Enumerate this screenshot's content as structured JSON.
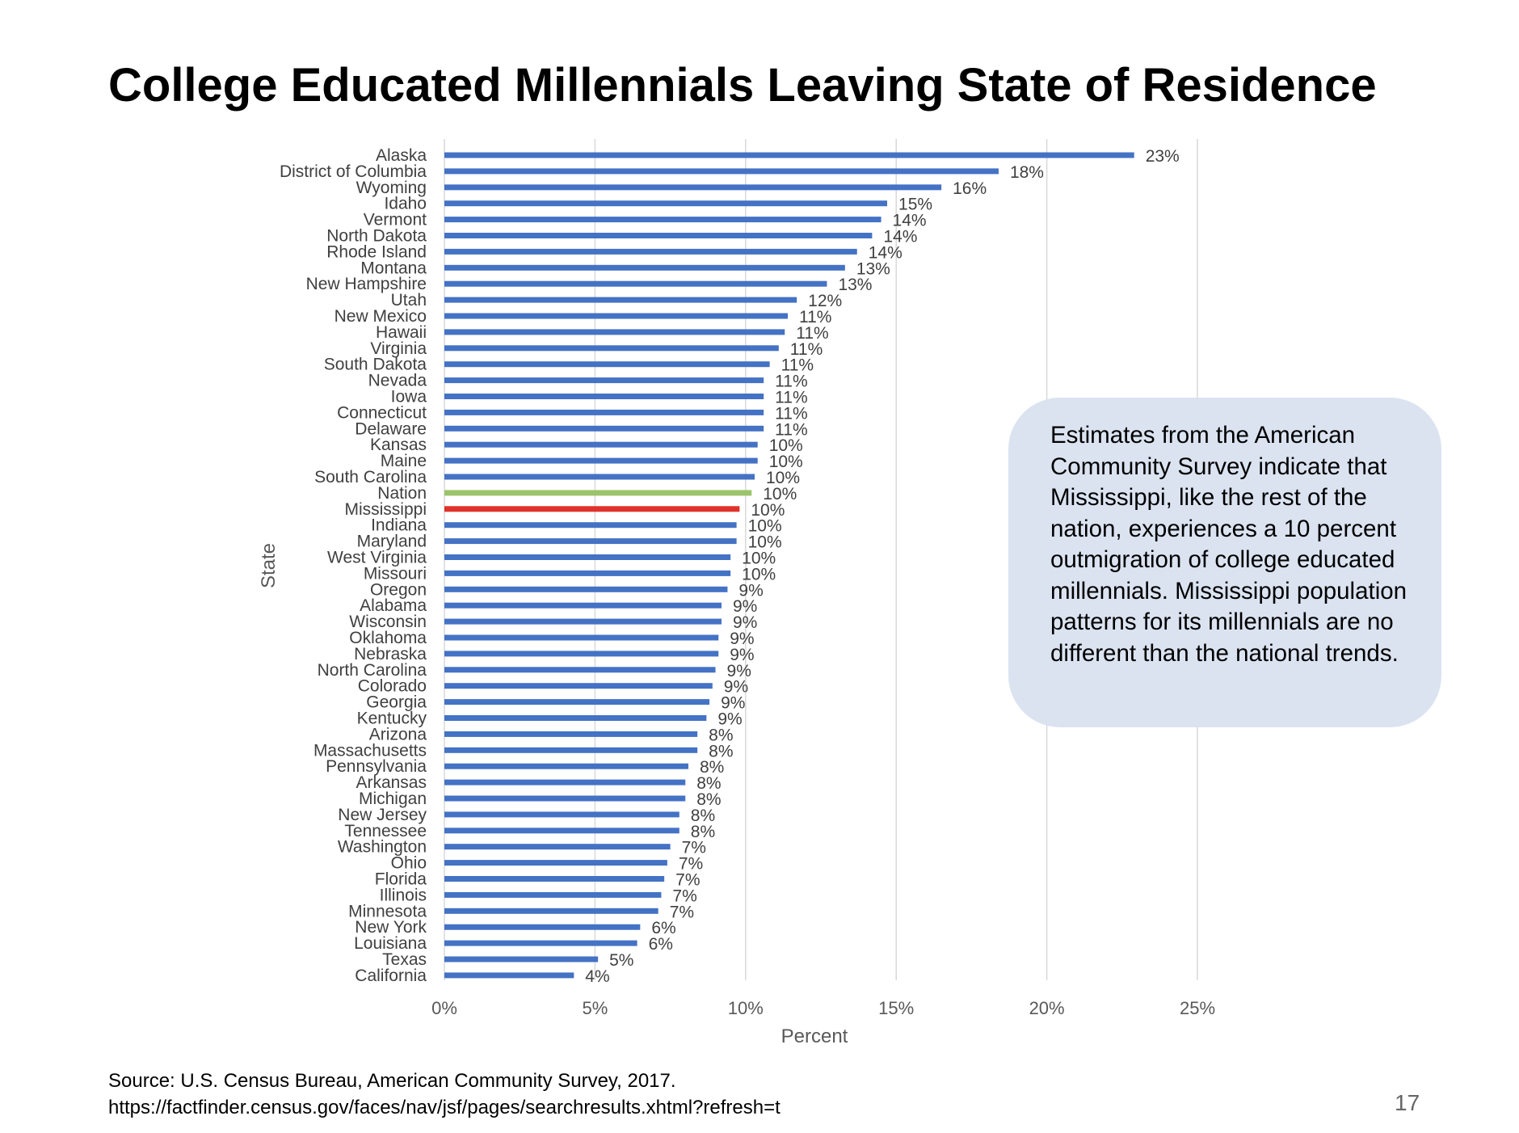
{
  "slide": {
    "title": "College Educated Millennials Leaving State of Residence",
    "callout_text": "Estimates from the American Community Survey indicate that Mississippi, like the rest of the nation, experiences a 10 percent outmigration of college educated millennials. Mississippi population patterns for its millennials are no different than the national trends.",
    "source_line1": "Source: U.S. Census Bureau, American Community Survey, 2017.",
    "source_line2": "https://factfinder.census.gov/faces/nav/jsf/pages/searchresults.xhtml?refresh=t",
    "page_number": "17"
  },
  "colors": {
    "default_bar": "#4472c4",
    "nation_bar": "#9bc46a",
    "mississippi_bar": "#e0312b",
    "grid": "#d9d9d9",
    "callout_bg": "#dbe3f1"
  },
  "chart_data": {
    "type": "bar",
    "orientation": "horizontal",
    "xlabel": "Percent",
    "ylabel": "State",
    "xlim": [
      0,
      25
    ],
    "x_ticks": [
      "0%",
      "5%",
      "10%",
      "15%",
      "20%",
      "25%"
    ],
    "grid": true,
    "categories": [
      "Alaska",
      "District of Columbia",
      "Wyoming",
      "Idaho",
      "Vermont",
      "North Dakota",
      "Rhode Island",
      "Montana",
      "New Hampshire",
      "Utah",
      "New Mexico",
      "Hawaii",
      "Virginia",
      "South Dakota",
      "Nevada",
      "Iowa",
      "Connecticut",
      "Delaware",
      "Kansas",
      "Maine",
      "South Carolina",
      "Nation",
      "Mississippi",
      "Indiana",
      "Maryland",
      "West Virginia",
      "Missouri",
      "Oregon",
      "Alabama",
      "Wisconsin",
      "Oklahoma",
      "Nebraska",
      "North Carolina",
      "Colorado",
      "Georgia",
      "Kentucky",
      "Arizona",
      "Massachusetts",
      "Pennsylvania",
      "Arkansas",
      "Michigan",
      "New Jersey",
      "Tennessee",
      "Washington",
      "Ohio",
      "Florida",
      "Illinois",
      "Minnesota",
      "New York",
      "Louisiana",
      "Texas",
      "California"
    ],
    "values": [
      22.9,
      18.4,
      16.5,
      14.7,
      14.5,
      14.2,
      13.7,
      13.3,
      12.7,
      11.7,
      11.4,
      11.3,
      11.1,
      10.8,
      10.6,
      10.6,
      10.6,
      10.6,
      10.4,
      10.4,
      10.3,
      10.2,
      9.8,
      9.7,
      9.7,
      9.5,
      9.5,
      9.4,
      9.2,
      9.2,
      9.1,
      9.1,
      9.0,
      8.9,
      8.8,
      8.7,
      8.4,
      8.4,
      8.1,
      8.0,
      8.0,
      7.8,
      7.8,
      7.5,
      7.4,
      7.3,
      7.2,
      7.1,
      6.5,
      6.4,
      5.1,
      4.3
    ],
    "data_labels": [
      "23%",
      "18%",
      "16%",
      "15%",
      "14%",
      "14%",
      "14%",
      "13%",
      "13%",
      "12%",
      "11%",
      "11%",
      "11%",
      "11%",
      "11%",
      "11%",
      "11%",
      "11%",
      "10%",
      "10%",
      "10%",
      "10%",
      "10%",
      "10%",
      "10%",
      "10%",
      "10%",
      "9%",
      "9%",
      "9%",
      "9%",
      "9%",
      "9%",
      "9%",
      "9%",
      "9%",
      "8%",
      "8%",
      "8%",
      "8%",
      "8%",
      "8%",
      "8%",
      "7%",
      "7%",
      "7%",
      "7%",
      "7%",
      "6%",
      "6%",
      "5%",
      "4%"
    ],
    "highlights": {
      "Nation": "nation_bar",
      "Mississippi": "mississippi_bar"
    }
  }
}
